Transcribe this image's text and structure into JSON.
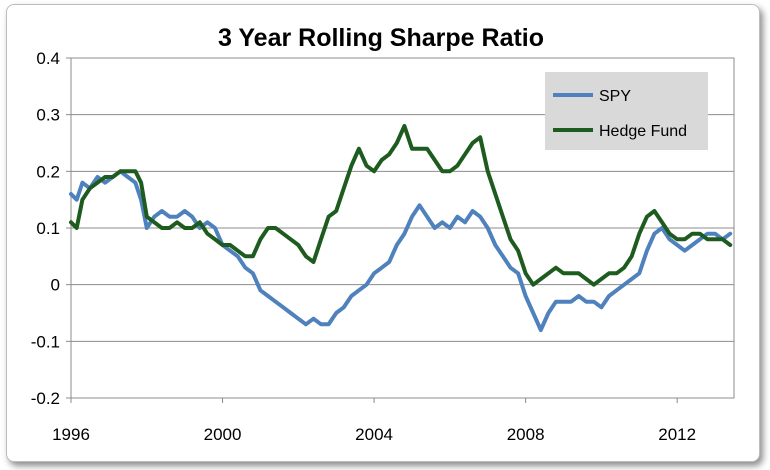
{
  "chart_data": {
    "type": "line",
    "title": "3 Year Rolling Sharpe Ratio",
    "xlabel": "",
    "ylabel": "",
    "xlim": [
      1996.0,
      2013.5
    ],
    "ylim": [
      -0.2,
      0.4
    ],
    "x_ticks": [
      1996,
      2000,
      2004,
      2008,
      2012
    ],
    "x_tick_labels": [
      "1996",
      "2000",
      "2004",
      "2008",
      "2012"
    ],
    "y_ticks": [
      -0.2,
      -0.1,
      0,
      0.1,
      0.2,
      0.3,
      0.4
    ],
    "y_tick_labels": [
      "-0.2",
      "-0.1",
      "0",
      "0.1",
      "0.2",
      "0.3",
      "0.4"
    ],
    "grid": {
      "horizontal": true,
      "vertical": false
    },
    "legend_position": "top-right",
    "series": [
      {
        "name": "SPY",
        "color": "#4f81bd",
        "x": [
          1996.0,
          1996.15,
          1996.3,
          1996.5,
          1996.7,
          1996.9,
          1997.1,
          1997.3,
          1997.5,
          1997.7,
          1997.85,
          1998.0,
          1998.2,
          1998.4,
          1998.6,
          1998.8,
          1999.0,
          1999.2,
          1999.4,
          1999.6,
          1999.8,
          2000.0,
          2000.2,
          2000.4,
          2000.6,
          2000.8,
          2001.0,
          2001.2,
          2001.4,
          2001.6,
          2001.8,
          2002.0,
          2002.2,
          2002.4,
          2002.6,
          2002.8,
          2003.0,
          2003.2,
          2003.4,
          2003.6,
          2003.8,
          2004.0,
          2004.2,
          2004.4,
          2004.6,
          2004.8,
          2005.0,
          2005.2,
          2005.4,
          2005.6,
          2005.8,
          2006.0,
          2006.2,
          2006.4,
          2006.6,
          2006.8,
          2007.0,
          2007.2,
          2007.4,
          2007.6,
          2007.8,
          2008.0,
          2008.2,
          2008.4,
          2008.6,
          2008.8,
          2009.0,
          2009.2,
          2009.4,
          2009.6,
          2009.8,
          2010.0,
          2010.2,
          2010.4,
          2010.6,
          2010.8,
          2011.0,
          2011.2,
          2011.4,
          2011.6,
          2011.8,
          2012.0,
          2012.2,
          2012.4,
          2012.6,
          2012.8,
          2013.0,
          2013.2,
          2013.4
        ],
        "values": [
          0.16,
          0.15,
          0.18,
          0.17,
          0.19,
          0.18,
          0.19,
          0.2,
          0.19,
          0.18,
          0.15,
          0.1,
          0.12,
          0.13,
          0.12,
          0.12,
          0.13,
          0.12,
          0.1,
          0.11,
          0.1,
          0.07,
          0.06,
          0.05,
          0.03,
          0.02,
          -0.01,
          -0.02,
          -0.03,
          -0.04,
          -0.05,
          -0.06,
          -0.07,
          -0.06,
          -0.07,
          -0.07,
          -0.05,
          -0.04,
          -0.02,
          -0.01,
          0.0,
          0.02,
          0.03,
          0.04,
          0.07,
          0.09,
          0.12,
          0.14,
          0.12,
          0.1,
          0.11,
          0.1,
          0.12,
          0.11,
          0.13,
          0.12,
          0.1,
          0.07,
          0.05,
          0.03,
          0.02,
          -0.02,
          -0.05,
          -0.08,
          -0.05,
          -0.03,
          -0.03,
          -0.03,
          -0.02,
          -0.03,
          -0.03,
          -0.04,
          -0.02,
          -0.01,
          0.0,
          0.01,
          0.02,
          0.06,
          0.09,
          0.1,
          0.08,
          0.07,
          0.06,
          0.07,
          0.08,
          0.09,
          0.09,
          0.08,
          0.09
        ]
      },
      {
        "name": "Hedge Fund",
        "color": "#1e5b1e",
        "x": [
          1996.0,
          1996.15,
          1996.3,
          1996.5,
          1996.7,
          1996.9,
          1997.1,
          1997.3,
          1997.5,
          1997.7,
          1997.85,
          1998.0,
          1998.2,
          1998.4,
          1998.6,
          1998.8,
          1999.0,
          1999.2,
          1999.4,
          1999.6,
          1999.8,
          2000.0,
          2000.2,
          2000.4,
          2000.6,
          2000.8,
          2001.0,
          2001.2,
          2001.4,
          2001.6,
          2001.8,
          2002.0,
          2002.2,
          2002.4,
          2002.6,
          2002.8,
          2003.0,
          2003.2,
          2003.4,
          2003.6,
          2003.8,
          2004.0,
          2004.2,
          2004.4,
          2004.6,
          2004.8,
          2005.0,
          2005.2,
          2005.4,
          2005.6,
          2005.8,
          2006.0,
          2006.2,
          2006.4,
          2006.6,
          2006.8,
          2007.0,
          2007.2,
          2007.4,
          2007.6,
          2007.8,
          2008.0,
          2008.2,
          2008.4,
          2008.6,
          2008.8,
          2009.0,
          2009.2,
          2009.4,
          2009.6,
          2009.8,
          2010.0,
          2010.2,
          2010.4,
          2010.6,
          2010.8,
          2011.0,
          2011.2,
          2011.4,
          2011.6,
          2011.8,
          2012.0,
          2012.2,
          2012.4,
          2012.6,
          2012.8,
          2013.0,
          2013.2,
          2013.4
        ],
        "values": [
          0.11,
          0.1,
          0.15,
          0.17,
          0.18,
          0.19,
          0.19,
          0.2,
          0.2,
          0.2,
          0.18,
          0.12,
          0.11,
          0.1,
          0.1,
          0.11,
          0.1,
          0.1,
          0.11,
          0.09,
          0.08,
          0.07,
          0.07,
          0.06,
          0.05,
          0.05,
          0.08,
          0.1,
          0.1,
          0.09,
          0.08,
          0.07,
          0.05,
          0.04,
          0.08,
          0.12,
          0.13,
          0.17,
          0.21,
          0.24,
          0.21,
          0.2,
          0.22,
          0.23,
          0.25,
          0.28,
          0.24,
          0.24,
          0.24,
          0.22,
          0.2,
          0.2,
          0.21,
          0.23,
          0.25,
          0.26,
          0.2,
          0.16,
          0.12,
          0.08,
          0.06,
          0.02,
          0.0,
          0.01,
          0.02,
          0.03,
          0.02,
          0.02,
          0.02,
          0.01,
          0.0,
          0.01,
          0.02,
          0.02,
          0.03,
          0.05,
          0.09,
          0.12,
          0.13,
          0.11,
          0.09,
          0.08,
          0.08,
          0.09,
          0.09,
          0.08,
          0.08,
          0.08,
          0.07
        ]
      }
    ]
  }
}
